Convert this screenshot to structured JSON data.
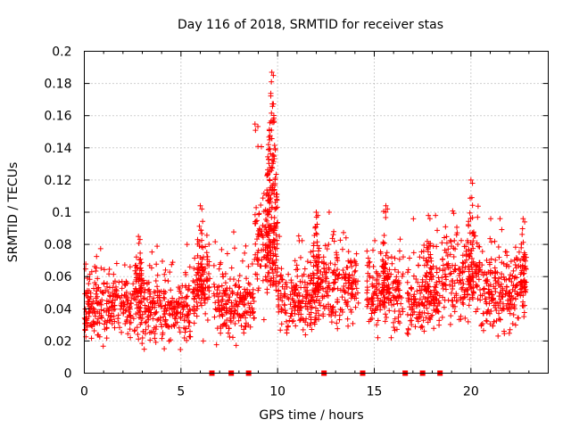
{
  "chart_data": {
    "type": "scatter",
    "title": "Day 116 of 2018, SRMTID for receiver stas",
    "xlabel": "GPS time / hours",
    "ylabel": "SRMTID / TECUs",
    "xlim": [
      0,
      24
    ],
    "ylim": [
      0,
      0.2
    ],
    "xticks": [
      0,
      5,
      10,
      15,
      20
    ],
    "xtick_labels": [
      "0",
      "5",
      "10",
      "15",
      "20"
    ],
    "yticks": [
      0,
      0.02,
      0.04,
      0.06,
      0.08,
      0.1,
      0.12,
      0.14,
      0.16,
      0.18,
      0.2
    ],
    "ytick_labels": [
      "0",
      "0.02",
      "0.04",
      "0.06",
      "0.08",
      "0.1",
      "0.12",
      "0.14",
      "0.16",
      "0.18",
      "0.2"
    ],
    "grid": true,
    "marker": "plus",
    "color": "#ff0000",
    "series": [
      {
        "name": "SRMTID",
        "note": "dense point cloud, ~2500 points; envelope per time window in hours and TECU",
        "segments": [
          {
            "x": [
              0.0,
              3.0
            ],
            "y_center": 0.042,
            "y_spread": 0.01,
            "y_min": 0.012,
            "y_max": 0.085
          },
          {
            "x": [
              3.0,
              5.5
            ],
            "y_center": 0.04,
            "y_spread": 0.01,
            "y_min": 0.012,
            "y_max": 0.08
          },
          {
            "x": [
              5.6,
              6.5
            ],
            "y_center": 0.055,
            "y_spread": 0.012,
            "y_min": 0.02,
            "y_max": 0.104
          },
          {
            "x": [
              6.7,
              8.8
            ],
            "y_center": 0.042,
            "y_spread": 0.01,
            "y_min": 0.015,
            "y_max": 0.088
          },
          {
            "x": [
              8.8,
              10.0
            ],
            "y_center": 0.08,
            "y_spread": 0.015,
            "y_min": 0.03,
            "y_max": 0.187
          },
          {
            "x": [
              10.0,
              12.0
            ],
            "y_center": 0.045,
            "y_spread": 0.01,
            "y_min": 0.02,
            "y_max": 0.095
          },
          {
            "x": [
              12.0,
              14.2
            ],
            "y_center": 0.055,
            "y_spread": 0.012,
            "y_min": 0.015,
            "y_max": 0.1
          },
          {
            "x": [
              14.6,
              16.5
            ],
            "y_center": 0.05,
            "y_spread": 0.012,
            "y_min": 0.022,
            "y_max": 0.104
          },
          {
            "x": [
              16.7,
              18.4
            ],
            "y_center": 0.045,
            "y_spread": 0.01,
            "y_min": 0.015,
            "y_max": 0.098
          },
          {
            "x": [
              18.5,
              20.5
            ],
            "y_center": 0.06,
            "y_spread": 0.012,
            "y_min": 0.02,
            "y_max": 0.12
          },
          {
            "x": [
              20.5,
              22.8
            ],
            "y_center": 0.05,
            "y_spread": 0.012,
            "y_min": 0.02,
            "y_max": 0.096
          }
        ],
        "peaks": [
          {
            "x": 9.7,
            "y": 0.187
          },
          {
            "x": 6.0,
            "y": 0.104
          },
          {
            "x": 12.0,
            "y": 0.1
          },
          {
            "x": 15.6,
            "y": 0.104
          },
          {
            "x": 17.8,
            "y": 0.098
          },
          {
            "x": 20.0,
            "y": 0.12
          },
          {
            "x": 22.7,
            "y": 0.096
          },
          {
            "x": 2.8,
            "y": 0.085
          }
        ]
      }
    ],
    "data_gap_markers": {
      "name": "data gaps",
      "y": 0,
      "x": [
        6.6,
        7.6,
        8.5,
        12.4,
        14.4,
        16.6,
        17.5,
        18.4
      ]
    }
  }
}
